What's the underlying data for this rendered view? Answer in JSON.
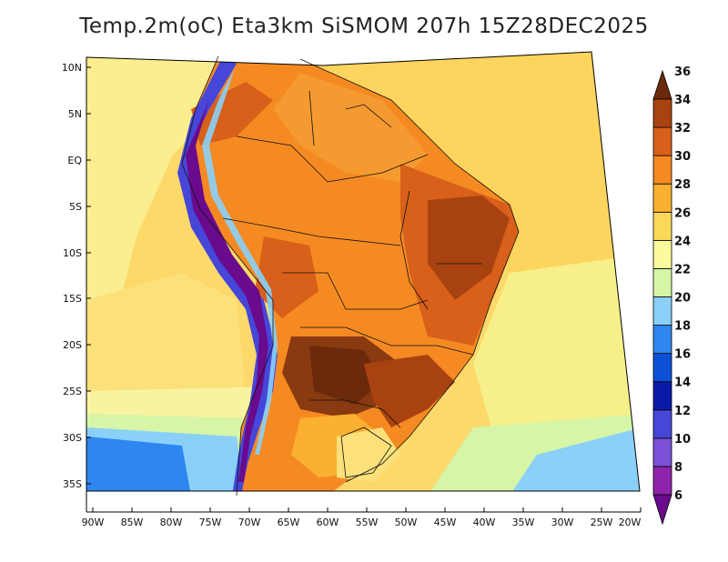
{
  "title": "Temp.2m(oC) Eta3km SiSMOM 207h 15Z28DEC2025",
  "map": {
    "variable": "2 m air temperature",
    "units": "°C",
    "region": "South America",
    "lat_labels": [
      "10N",
      "5N",
      "EQ",
      "5S",
      "10S",
      "15S",
      "20S",
      "25S",
      "30S",
      "35S"
    ],
    "lon_labels": [
      "90W",
      "85W",
      "80W",
      "75W",
      "70W",
      "65W",
      "60W",
      "55W",
      "50W",
      "45W",
      "40W",
      "35W",
      "30W",
      "25W",
      "20W"
    ]
  },
  "colorbar": {
    "levels": [
      "6",
      "8",
      "10",
      "12",
      "14",
      "16",
      "18",
      "20",
      "22",
      "24",
      "26",
      "28",
      "30",
      "32",
      "34",
      "36"
    ],
    "colors": [
      "#6a0a8c",
      "#8e24aa",
      "#7b4fd6",
      "#4646d8",
      "#0a1aa8",
      "#0c50d8",
      "#2f86f0",
      "#8ad0f8",
      "#d6f5a6",
      "#fafa9c",
      "#fbd85a",
      "#fbb030",
      "#f58a22",
      "#d8601a",
      "#a84210",
      "#6b2a0c"
    ]
  }
}
